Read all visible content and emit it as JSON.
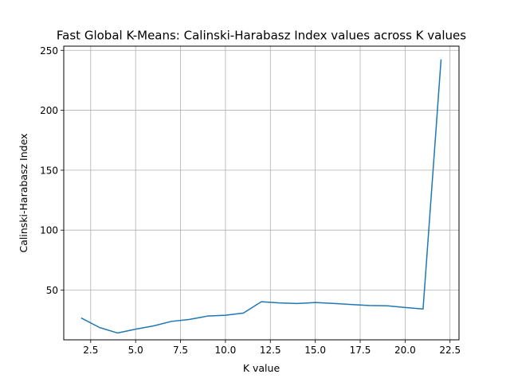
{
  "chart_data": {
    "type": "line",
    "title": "Fast Global K-Means: Calinski-Harabasz Index values across K values",
    "xlabel": "K value",
    "ylabel": "Calinski-Harabasz Index",
    "xlim": [
      1.0,
      23.0
    ],
    "ylim": [
      8.5,
      253.5
    ],
    "xticks": [
      2.5,
      5.0,
      7.5,
      10.0,
      12.5,
      15.0,
      17.5,
      20.0,
      22.5
    ],
    "xtick_labels": [
      "2.5",
      "5.0",
      "7.5",
      "10.0",
      "12.5",
      "15.0",
      "17.5",
      "20.0",
      "22.5"
    ],
    "yticks": [
      50,
      100,
      150,
      200,
      250
    ],
    "ytick_labels": [
      "50",
      "100",
      "150",
      "200",
      "250"
    ],
    "grid": true,
    "series": [
      {
        "color": "#1f77b4",
        "x": [
          2,
          3,
          4,
          5,
          6,
          7,
          8,
          9,
          10,
          11,
          12,
          13,
          14,
          15,
          16,
          17,
          18,
          19,
          20,
          21,
          22
        ],
        "y": [
          26.5,
          18.7,
          14.2,
          17.4,
          20.1,
          23.9,
          25.5,
          28.3,
          29.0,
          30.8,
          40.3,
          39.3,
          38.8,
          39.6,
          38.9,
          38.0,
          37.1,
          36.9,
          35.5,
          34.2,
          242.0
        ]
      }
    ]
  }
}
